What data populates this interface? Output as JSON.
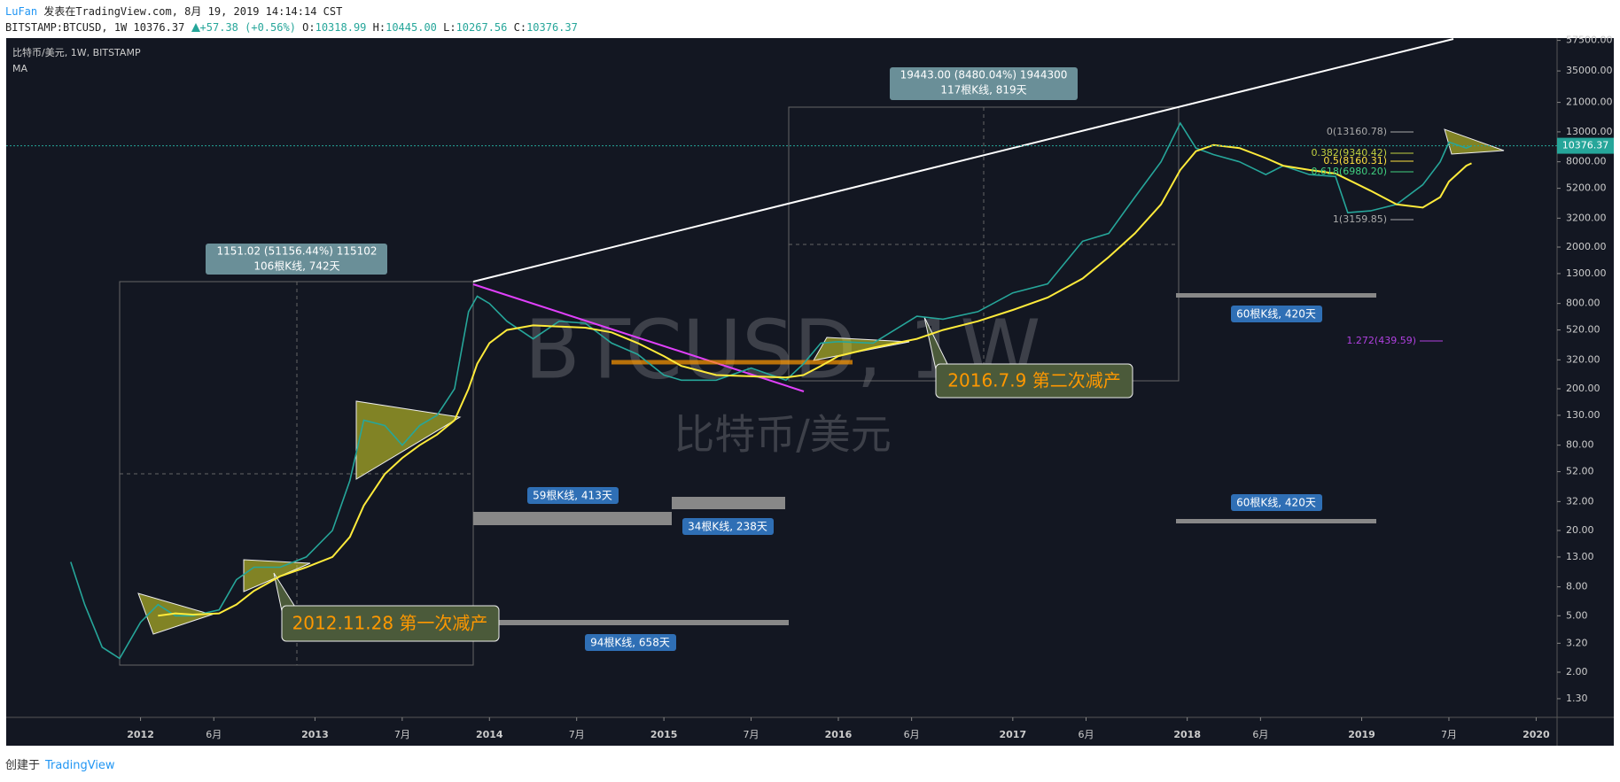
{
  "header": {
    "author": "LuFan",
    "published": "发表在TradingView.com, 8月 19, 2019 14:14:14 CST",
    "symbol": "BITSTAMP:BTCUSD, 1W",
    "last": "10376.37",
    "change": "+57.38 (+0.56%)",
    "open_label": "O:",
    "open": "10318.99",
    "high_label": "H:",
    "high": "10445.00",
    "low_label": "L:",
    "low": "10267.56",
    "close_label": "C:",
    "close": "10376.37"
  },
  "watermark": {
    "symbol": "BTCUSD, 1W",
    "name": "比特币/美元"
  },
  "annotations": {
    "measures": [
      {
        "line1": "1151.02 (51156.44%) 115102",
        "line2": "106根K线, 742天"
      },
      {
        "line1": "19443.00 (8480.04%) 1944300",
        "line2": "117根K线, 819天"
      }
    ],
    "ranges": [
      "59根K线, 413天",
      "34根K线, 238天",
      "94根K线, 658天",
      "60根K线, 420天",
      "60根K线, 420天"
    ],
    "callouts": [
      "2012.11.28 第一次减产",
      "2016.7.9 第二次减产"
    ],
    "fib_levels": [
      "0(13160.78)",
      "0.382(9340.42)",
      "0.5(8160.31)",
      "0.618(6980.20)",
      "1(3159.85)",
      "1.272(439.59)"
    ]
  },
  "footer": {
    "created": "创建于",
    "brand": "TradingView"
  },
  "chart_data": {
    "type": "line",
    "log_scale": true,
    "grid": false,
    "x": [
      2011.6,
      2011.68,
      2011.78,
      2011.88,
      2012.0,
      2012.1,
      2012.2,
      2012.3,
      2012.45,
      2012.55,
      2012.65,
      2012.8,
      2012.95,
      2013.1,
      2013.2,
      2013.28,
      2013.4,
      2013.5,
      2013.6,
      2013.7,
      2013.8,
      2013.88,
      2013.93,
      2014.0,
      2014.1,
      2014.25,
      2014.4,
      2014.55,
      2014.7,
      2014.85,
      2015.0,
      2015.1,
      2015.3,
      2015.5,
      2015.7,
      2015.8,
      2015.9,
      2016.0,
      2016.2,
      2016.45,
      2016.6,
      2016.8,
      2017.0,
      2017.2,
      2017.4,
      2017.55,
      2017.7,
      2017.85,
      2017.96,
      2018.05,
      2018.15,
      2018.3,
      2018.45,
      2018.55,
      2018.7,
      2018.85,
      2018.92,
      2019.05,
      2019.2,
      2019.35,
      2019.45,
      2019.5,
      2019.6,
      2019.63
    ],
    "series": [
      {
        "name": "比特币/美元, 1W, BITSTAMP",
        "color": "#26a69a",
        "values": [
          12,
          6,
          3,
          2.5,
          4.5,
          6,
          5,
          5,
          5.5,
          9,
          11,
          11,
          13,
          20,
          45,
          120,
          110,
          80,
          110,
          130,
          200,
          700,
          900,
          800,
          600,
          450,
          600,
          580,
          420,
          350,
          250,
          230,
          230,
          280,
          230,
          300,
          420,
          430,
          420,
          650,
          620,
          700,
          950,
          1100,
          2200,
          2500,
          4500,
          8000,
          15000,
          10000,
          9000,
          8000,
          6500,
          7500,
          6500,
          6300,
          3500,
          3600,
          4000,
          5500,
          8000,
          11000,
          10000,
          10376.37
        ]
      },
      {
        "name": "MA",
        "color": "#ffeb3b",
        "values": [
          null,
          null,
          null,
          null,
          null,
          5,
          5.2,
          5.1,
          5.2,
          6,
          7.5,
          9.5,
          11,
          13,
          18,
          30,
          50,
          65,
          80,
          95,
          120,
          200,
          300,
          420,
          520,
          560,
          550,
          540,
          500,
          420,
          340,
          290,
          250,
          245,
          240,
          250,
          290,
          340,
          390,
          450,
          520,
          600,
          720,
          880,
          1200,
          1700,
          2500,
          4000,
          7000,
          9500,
          10500,
          10000,
          8500,
          7500,
          7000,
          6600,
          6000,
          5000,
          4000,
          3800,
          4500,
          5800,
          7500,
          7800
        ]
      }
    ],
    "last_price": 10376.37,
    "xlim": [
      2011.23,
      2020.12
    ],
    "xticks": [
      {
        "value": 2012,
        "label": "2012"
      },
      {
        "value": 2012.42,
        "label": "6月"
      },
      {
        "value": 2013,
        "label": "2013"
      },
      {
        "value": 2013.5,
        "label": "7月"
      },
      {
        "value": 2014,
        "label": "2014"
      },
      {
        "value": 2014.5,
        "label": "7月"
      },
      {
        "value": 2015,
        "label": "2015"
      },
      {
        "value": 2015.5,
        "label": "7月"
      },
      {
        "value": 2016,
        "label": "2016"
      },
      {
        "value": 2016.42,
        "label": "6月"
      },
      {
        "value": 2017,
        "label": "2017"
      },
      {
        "value": 2017.42,
        "label": "6月"
      },
      {
        "value": 2018,
        "label": "2018"
      },
      {
        "value": 2018.42,
        "label": "6月"
      },
      {
        "value": 2019,
        "label": "2019"
      },
      {
        "value": 2019.5,
        "label": "7月"
      },
      {
        "value": 2020,
        "label": "2020"
      }
    ],
    "ylim": [
      0.96,
      59700
    ],
    "yticks": [
      {
        "value": 57500,
        "label": "57500.00"
      },
      {
        "value": 35000,
        "label": "35000.00"
      },
      {
        "value": 21000,
        "label": "21000.00"
      },
      {
        "value": 13000,
        "label": "13000.00"
      },
      {
        "value": 8000,
        "label": "8000.00"
      },
      {
        "value": 5200,
        "label": "5200.00"
      },
      {
        "value": 3200,
        "label": "3200.00"
      },
      {
        "value": 2000,
        "label": "2000.00"
      },
      {
        "value": 1300,
        "label": "1300.00"
      },
      {
        "value": 800,
        "label": "800.00"
      },
      {
        "value": 520,
        "label": "520.00"
      },
      {
        "value": 320,
        "label": "320.00"
      },
      {
        "value": 200,
        "label": "200.00"
      },
      {
        "value": 130,
        "label": "130.00"
      },
      {
        "value": 80,
        "label": "80.00"
      },
      {
        "value": 52,
        "label": "52.00"
      },
      {
        "value": 32,
        "label": "32.00"
      },
      {
        "value": 20,
        "label": "20.00"
      },
      {
        "value": 13,
        "label": "13.00"
      },
      {
        "value": 8,
        "label": "8.00"
      },
      {
        "value": 5,
        "label": "5.00"
      },
      {
        "value": 3.2,
        "label": "3.20"
      },
      {
        "value": 2,
        "label": "2.00"
      },
      {
        "value": 1.3,
        "label": "1.30"
      }
    ]
  }
}
